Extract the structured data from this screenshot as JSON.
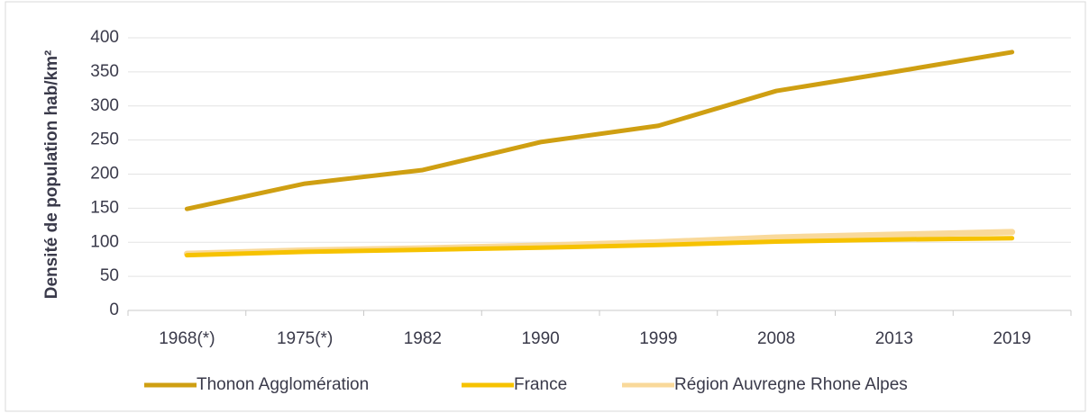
{
  "chart_data": {
    "type": "line",
    "ylabel": "Densité de population hab/km²",
    "categories": [
      "1968(*)",
      "1975(*)",
      "1982",
      "1990",
      "1999",
      "2008",
      "2013",
      "2019"
    ],
    "series": [
      {
        "name": "Thonon Agglomération",
        "color": "#cf9f12",
        "values": [
          149,
          186,
          206,
          247,
          271,
          322,
          350,
          379
        ]
      },
      {
        "name": "France",
        "color": "#f6c200",
        "values": [
          81,
          86,
          89,
          92,
          96,
          101,
          104,
          106
        ]
      },
      {
        "name": "Région Auvregne Rhone Alpes",
        "color": "#f9d99a",
        "values": [
          83,
          88,
          91,
          95,
          100,
          107,
          111,
          115
        ]
      }
    ],
    "ylim": [
      0,
      400
    ],
    "yticks": [
      0,
      50,
      100,
      150,
      200,
      250,
      300,
      350,
      400
    ],
    "grid": true,
    "legend": "bottom"
  }
}
